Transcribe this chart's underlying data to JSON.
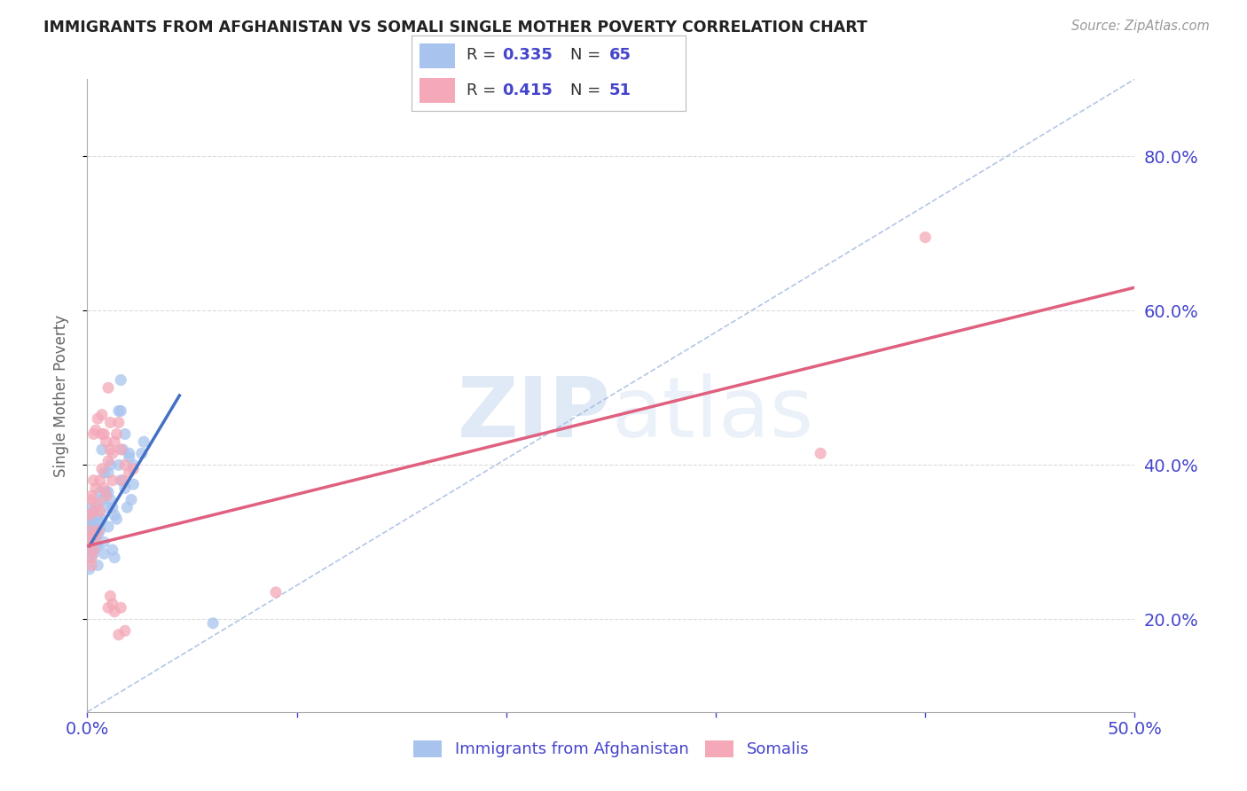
{
  "title": "IMMIGRANTS FROM AFGHANISTAN VS SOMALI SINGLE MOTHER POVERTY CORRELATION CHART",
  "source": "Source: ZipAtlas.com",
  "ylabel": "Single Mother Poverty",
  "legend_label1": "Immigrants from Afghanistan",
  "legend_label2": "Somalis",
  "R1": 0.335,
  "N1": 65,
  "R2": 0.415,
  "N2": 51,
  "watermark_zip": "ZIP",
  "watermark_atlas": "atlas",
  "blue_color": "#a8c4ee",
  "pink_color": "#f4a8b8",
  "blue_line_color": "#4470c4",
  "pink_line_color": "#e06080",
  "ref_line_color": "#a0b8e0",
  "axis_label_color": "#4444cc",
  "title_color": "#222222",
  "grid_color": "#cccccc",
  "background_color": "#ffffff",
  "blue_scatter": [
    [
      0.001,
      0.295
    ],
    [
      0.001,
      0.305
    ],
    [
      0.001,
      0.315
    ],
    [
      0.001,
      0.325
    ],
    [
      0.001,
      0.335
    ],
    [
      0.001,
      0.345
    ],
    [
      0.001,
      0.28
    ],
    [
      0.001,
      0.265
    ],
    [
      0.002,
      0.285
    ],
    [
      0.002,
      0.295
    ],
    [
      0.002,
      0.305
    ],
    [
      0.002,
      0.315
    ],
    [
      0.002,
      0.325
    ],
    [
      0.002,
      0.335
    ],
    [
      0.003,
      0.285
    ],
    [
      0.003,
      0.295
    ],
    [
      0.003,
      0.305
    ],
    [
      0.003,
      0.315
    ],
    [
      0.003,
      0.325
    ],
    [
      0.004,
      0.295
    ],
    [
      0.004,
      0.305
    ],
    [
      0.004,
      0.315
    ],
    [
      0.004,
      0.345
    ],
    [
      0.005,
      0.27
    ],
    [
      0.005,
      0.295
    ],
    [
      0.005,
      0.31
    ],
    [
      0.005,
      0.335
    ],
    [
      0.006,
      0.315
    ],
    [
      0.006,
      0.325
    ],
    [
      0.006,
      0.365
    ],
    [
      0.007,
      0.33
    ],
    [
      0.007,
      0.355
    ],
    [
      0.007,
      0.42
    ],
    [
      0.008,
      0.285
    ],
    [
      0.008,
      0.3
    ],
    [
      0.008,
      0.39
    ],
    [
      0.009,
      0.345
    ],
    [
      0.009,
      0.365
    ],
    [
      0.01,
      0.32
    ],
    [
      0.01,
      0.365
    ],
    [
      0.01,
      0.39
    ],
    [
      0.011,
      0.355
    ],
    [
      0.011,
      0.4
    ],
    [
      0.012,
      0.29
    ],
    [
      0.012,
      0.345
    ],
    [
      0.013,
      0.28
    ],
    [
      0.013,
      0.335
    ],
    [
      0.014,
      0.33
    ],
    [
      0.015,
      0.4
    ],
    [
      0.015,
      0.47
    ],
    [
      0.016,
      0.38
    ],
    [
      0.016,
      0.51
    ],
    [
      0.017,
      0.42
    ],
    [
      0.018,
      0.37
    ],
    [
      0.018,
      0.44
    ],
    [
      0.019,
      0.345
    ],
    [
      0.02,
      0.41
    ],
    [
      0.02,
      0.415
    ],
    [
      0.021,
      0.355
    ],
    [
      0.022,
      0.375
    ],
    [
      0.022,
      0.4
    ],
    [
      0.026,
      0.415
    ],
    [
      0.027,
      0.43
    ],
    [
      0.06,
      0.195
    ],
    [
      0.016,
      0.47
    ]
  ],
  "pink_scatter": [
    [
      0.001,
      0.295
    ],
    [
      0.001,
      0.305
    ],
    [
      0.001,
      0.315
    ],
    [
      0.001,
      0.335
    ],
    [
      0.002,
      0.27
    ],
    [
      0.002,
      0.28
    ],
    [
      0.002,
      0.355
    ],
    [
      0.002,
      0.36
    ],
    [
      0.003,
      0.29
    ],
    [
      0.003,
      0.34
    ],
    [
      0.003,
      0.38
    ],
    [
      0.003,
      0.44
    ],
    [
      0.004,
      0.305
    ],
    [
      0.004,
      0.37
    ],
    [
      0.004,
      0.445
    ],
    [
      0.005,
      0.315
    ],
    [
      0.005,
      0.35
    ],
    [
      0.005,
      0.46
    ],
    [
      0.006,
      0.34
    ],
    [
      0.006,
      0.38
    ],
    [
      0.007,
      0.395
    ],
    [
      0.007,
      0.44
    ],
    [
      0.007,
      0.465
    ],
    [
      0.008,
      0.37
    ],
    [
      0.008,
      0.44
    ],
    [
      0.009,
      0.36
    ],
    [
      0.009,
      0.43
    ],
    [
      0.01,
      0.215
    ],
    [
      0.01,
      0.405
    ],
    [
      0.01,
      0.5
    ],
    [
      0.011,
      0.23
    ],
    [
      0.011,
      0.42
    ],
    [
      0.011,
      0.455
    ],
    [
      0.012,
      0.22
    ],
    [
      0.012,
      0.38
    ],
    [
      0.012,
      0.415
    ],
    [
      0.013,
      0.21
    ],
    [
      0.013,
      0.43
    ],
    [
      0.014,
      0.44
    ],
    [
      0.015,
      0.18
    ],
    [
      0.015,
      0.455
    ],
    [
      0.016,
      0.215
    ],
    [
      0.016,
      0.42
    ],
    [
      0.017,
      0.38
    ],
    [
      0.018,
      0.185
    ],
    [
      0.018,
      0.4
    ],
    [
      0.02,
      0.39
    ],
    [
      0.022,
      0.395
    ],
    [
      0.09,
      0.235
    ],
    [
      0.4,
      0.695
    ],
    [
      0.35,
      0.415
    ]
  ],
  "xlim": [
    0.0,
    0.5
  ],
  "ylim": [
    0.08,
    0.9
  ],
  "xticks": [
    0.0,
    0.1,
    0.2,
    0.3,
    0.4,
    0.5
  ],
  "yticks": [
    0.2,
    0.4,
    0.6,
    0.8
  ],
  "ytick_labels": [
    "20.0%",
    "40.0%",
    "60.0%",
    "80.0%"
  ],
  "xtick_left_label": "0.0%",
  "xtick_right_label": "50.0%",
  "blue_line_x": [
    0.001,
    0.044
  ],
  "blue_line_y": [
    0.295,
    0.49
  ],
  "pink_line_x": [
    0.0,
    0.5
  ],
  "pink_line_y": [
    0.295,
    0.63
  ],
  "ref_line_x": [
    0.0,
    0.5
  ],
  "ref_line_y": [
    0.08,
    0.9
  ]
}
